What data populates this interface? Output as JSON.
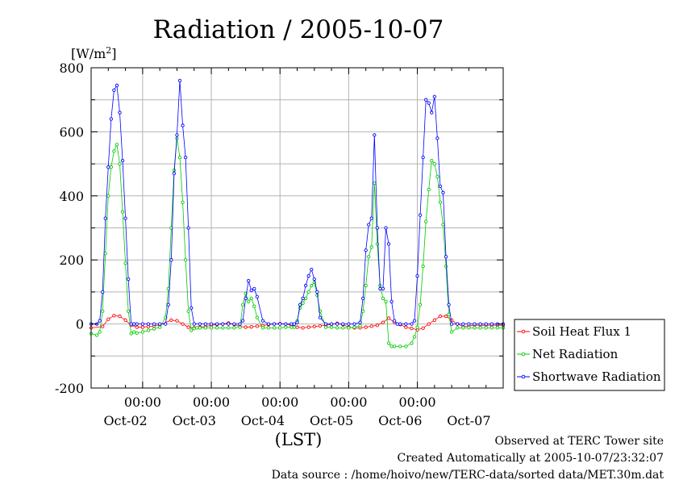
{
  "chart_data": {
    "type": "line",
    "title": "Radiation / 2005-10-07",
    "ylabel_unit": "[W/m",
    "ylabel_sup": "2",
    "ylabel_close": "]",
    "xlabel": "(LST)",
    "ylim": [
      -200,
      800
    ],
    "y_ticks": [
      -200,
      0,
      200,
      400,
      600,
      800
    ],
    "y_tick_labels": [
      "-200",
      "0",
      "200",
      "400",
      "600",
      "800"
    ],
    "xlim": [
      0,
      144
    ],
    "x_ticks": [
      18,
      42,
      66,
      90,
      114
    ],
    "x_tick_time": "00:00",
    "day_labels": [
      {
        "label": "Oct-02",
        "pos": 12
      },
      {
        "label": "Oct-03",
        "pos": 36
      },
      {
        "label": "Oct-04",
        "pos": 60
      },
      {
        "label": "Oct-05",
        "pos": 84
      },
      {
        "label": "Oct-06",
        "pos": 108
      },
      {
        "label": "Oct-07",
        "pos": 132
      }
    ],
    "grid": true,
    "legend_position": "right",
    "series": [
      {
        "name": "Soil Heat Flux 1",
        "color": "#ff0000",
        "x": [
          0,
          4,
          6,
          8,
          10,
          12,
          14,
          16,
          18,
          20,
          22,
          24,
          28,
          30,
          32,
          34,
          36,
          38,
          40,
          42,
          44,
          46,
          48,
          50,
          52,
          54,
          56,
          58,
          60,
          62,
          64,
          66,
          68,
          70,
          72,
          74,
          76,
          78,
          80,
          82,
          84,
          86,
          88,
          90,
          92,
          94,
          96,
          98,
          100,
          102,
          104,
          106,
          108,
          110,
          112,
          114,
          116,
          118,
          120,
          122,
          124,
          126,
          128,
          130,
          132,
          134,
          136,
          138,
          140,
          142,
          144
        ],
        "y": [
          -12,
          -8,
          15,
          26,
          24,
          12,
          -4,
          -10,
          -10,
          -8,
          -6,
          -3,
          12,
          10,
          0,
          -10,
          -12,
          -10,
          -8,
          -4,
          -2,
          0,
          3,
          -2,
          -8,
          -10,
          -9,
          -7,
          -5,
          -2,
          0,
          1,
          0,
          -4,
          -10,
          -12,
          -10,
          -8,
          -6,
          -4,
          -1,
          2,
          -2,
          -10,
          -12,
          -12,
          -10,
          -7,
          -4,
          5,
          18,
          5,
          -2,
          -10,
          -14,
          -18,
          -13,
          0,
          12,
          24,
          24,
          12,
          0,
          -8,
          -6,
          -4,
          -4,
          -4,
          -4,
          -4,
          -4
        ]
      },
      {
        "name": "Net Radiation",
        "color": "#00cc00",
        "x": [
          0,
          2,
          3,
          4,
          5,
          6,
          7,
          8,
          9,
          10,
          11,
          12,
          13,
          14,
          15,
          16,
          18,
          20,
          22,
          24,
          26,
          27,
          28,
          29,
          30,
          31,
          32,
          33,
          34,
          35,
          36,
          37,
          38,
          40,
          42,
          44,
          46,
          48,
          50,
          52,
          53,
          54,
          55,
          56,
          57,
          58,
          60,
          62,
          64,
          66,
          68,
          70,
          71,
          72,
          73,
          74,
          75,
          76,
          77,
          78,
          79,
          80,
          82,
          84,
          86,
          88,
          90,
          92,
          94,
          95,
          96,
          97,
          98,
          99,
          100,
          101,
          102,
          103,
          104,
          105,
          106,
          108,
          110,
          112,
          113,
          114,
          115,
          116,
          117,
          118,
          119,
          120,
          121,
          122,
          123,
          124,
          125,
          126,
          128,
          130,
          132,
          134,
          136,
          138,
          140,
          142,
          144
        ],
        "y": [
          -30,
          -35,
          -25,
          40,
          220,
          400,
          490,
          540,
          560,
          500,
          350,
          190,
          40,
          -30,
          -25,
          -28,
          -25,
          -20,
          -15,
          -10,
          20,
          110,
          300,
          480,
          580,
          520,
          380,
          200,
          40,
          -20,
          -14,
          -12,
          -12,
          -12,
          -12,
          -12,
          -12,
          -12,
          -12,
          -10,
          60,
          95,
          70,
          80,
          55,
          20,
          -12,
          -12,
          -12,
          -12,
          -10,
          -10,
          -10,
          10,
          50,
          65,
          80,
          100,
          120,
          130,
          90,
          40,
          -10,
          -10,
          -12,
          -12,
          -12,
          -10,
          -5,
          40,
          120,
          210,
          240,
          440,
          250,
          120,
          80,
          70,
          -60,
          -70,
          -70,
          -70,
          -70,
          -60,
          -40,
          -10,
          60,
          180,
          320,
          420,
          510,
          500,
          460,
          380,
          310,
          180,
          30,
          -25,
          -12,
          -12,
          -12,
          -12,
          -12,
          -12,
          -12,
          -12,
          -12
        ]
      },
      {
        "name": "Shortwave Radiation",
        "color": "#0000ff",
        "x": [
          0,
          2,
          3,
          4,
          5,
          6,
          7,
          8,
          9,
          10,
          11,
          12,
          13,
          14,
          15,
          16,
          18,
          20,
          22,
          24,
          26,
          27,
          28,
          29,
          30,
          31,
          32,
          33,
          34,
          35,
          36,
          38,
          40,
          42,
          44,
          46,
          48,
          50,
          52,
          53,
          54,
          55,
          56,
          57,
          58,
          60,
          62,
          64,
          66,
          68,
          70,
          71,
          72,
          73,
          74,
          75,
          76,
          77,
          78,
          79,
          80,
          82,
          84,
          86,
          88,
          90,
          92,
          94,
          95,
          96,
          97,
          98,
          99,
          100,
          101,
          102,
          103,
          104,
          105,
          106,
          107,
          108,
          110,
          112,
          113,
          114,
          115,
          116,
          117,
          118,
          119,
          120,
          121,
          122,
          123,
          124,
          125,
          126,
          128,
          130,
          132,
          134,
          136,
          138,
          140,
          142,
          144
        ],
        "y": [
          0,
          0,
          10,
          100,
          330,
          490,
          640,
          730,
          745,
          660,
          510,
          330,
          140,
          0,
          0,
          0,
          0,
          0,
          0,
          0,
          0,
          60,
          200,
          470,
          590,
          760,
          620,
          520,
          300,
          50,
          0,
          0,
          0,
          0,
          0,
          0,
          0,
          0,
          0,
          10,
          80,
          135,
          105,
          110,
          85,
          10,
          0,
          0,
          0,
          0,
          0,
          0,
          5,
          60,
          80,
          120,
          150,
          170,
          140,
          100,
          20,
          0,
          0,
          0,
          0,
          0,
          0,
          5,
          80,
          230,
          310,
          330,
          590,
          300,
          110,
          110,
          300,
          250,
          70,
          10,
          0,
          0,
          0,
          0,
          10,
          150,
          340,
          520,
          700,
          690,
          660,
          710,
          580,
          430,
          410,
          210,
          60,
          0,
          0,
          0,
          0,
          0,
          0,
          0,
          0,
          0,
          0
        ]
      }
    ]
  },
  "footer": {
    "line1": "Observed at TERC Tower site",
    "line2": "Created Automatically at 2005-10-07/23:32:07",
    "line3": "Data source : /home/hoivo/new/TERC-data/sorted  data/MET.30m.dat"
  }
}
